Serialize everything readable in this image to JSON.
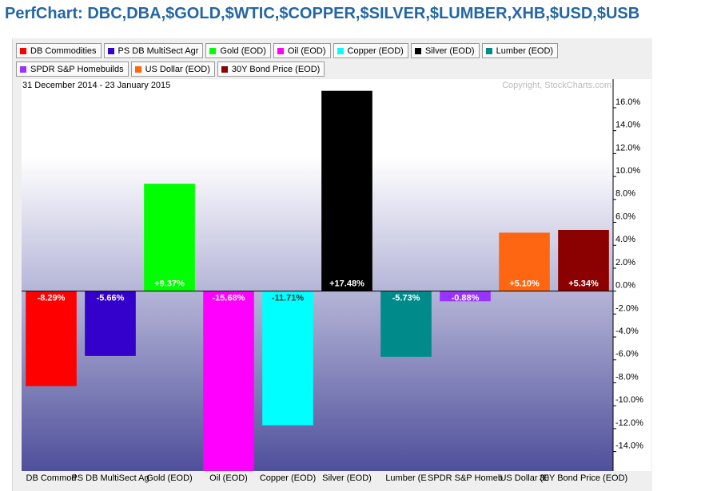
{
  "chart_data": {
    "type": "bar",
    "title": "PerfChart: DBC,DBA,$GOLD,$WTIC,$COPPER,$SILVER,$LUMBER,XHB,$USD,$USB",
    "subtitle": "31 December 2014 - 23 January 2015",
    "annotation": "Copyright, StockCharts.com",
    "legend": [
      "DB Commodities",
      "PS DB MultiSect  Agr",
      "Gold (EOD)",
      "Oil (EOD)",
      "Copper (EOD)",
      "Silver (EOD)",
      "Lumber (EOD)",
      "SPDR S&P Homebuilds",
      "US Dollar (EOD)",
      "30Y Bond Price (EOD)"
    ],
    "categories": [
      "DB Commod",
      "PS DB MultiSect  Ag",
      "Gold (EOD)",
      "Oil (EOD)",
      "Copper (EOD)",
      "Silver (EOD)",
      "Lumber (E",
      "SPDR S&P Homeb",
      "US Dollar (E",
      "30Y Bond Price (EOD)"
    ],
    "values": [
      -8.29,
      -5.66,
      9.37,
      -15.68,
      -11.71,
      17.48,
      -5.73,
      -0.88,
      5.1,
      5.34
    ],
    "value_labels": [
      "-8.29%",
      "-5.66%",
      "+9.37%",
      "-15.68%",
      "-11.71%",
      "+17.48%",
      "-5.73%",
      "-0.88%",
      "+5.10%",
      "+5.34%"
    ],
    "colors": [
      "#ff0000",
      "#3300cc",
      "#00ff00",
      "#ff00ff",
      "#00ffff",
      "#000000",
      "#008b8b",
      "#9933ff",
      "#ff6611",
      "#8b0000"
    ],
    "ylim": [
      -15.7,
      17.6
    ],
    "yticks": [
      {
        "value": 16,
        "label": "16.0%"
      },
      {
        "value": 14,
        "label": "14.0%"
      },
      {
        "value": 12,
        "label": "12.0%"
      },
      {
        "value": 10,
        "label": "10.0%"
      },
      {
        "value": 8,
        "label": "8.0%"
      },
      {
        "value": 6,
        "label": "6.0%"
      },
      {
        "value": 4,
        "label": "4.0%"
      },
      {
        "value": 2,
        "label": "2.0%"
      },
      {
        "value": 0,
        "label": "0.0%"
      },
      {
        "value": -2,
        "label": "-2.0%"
      },
      {
        "value": -4,
        "label": "-4.0%"
      },
      {
        "value": -6,
        "label": "-6.0%"
      },
      {
        "value": -8,
        "label": "-8.0%"
      },
      {
        "value": -10,
        "label": "-10.0%"
      },
      {
        "value": -12,
        "label": "-12.0%"
      },
      {
        "value": -14,
        "label": "-14.0%"
      }
    ],
    "grid": false
  }
}
